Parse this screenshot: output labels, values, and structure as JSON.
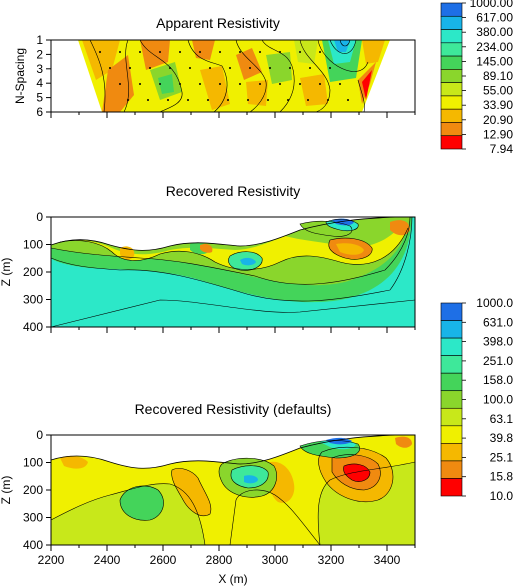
{
  "chart_data": [
    {
      "type": "heatmap",
      "title": "Apparent Resistivity",
      "ylabel": "N-Spacing",
      "xlabel": "",
      "xlim": [
        2200,
        3500
      ],
      "ylim": [
        6,
        1
      ],
      "yticks": [
        "1",
        "2",
        "3",
        "4",
        "5",
        "6"
      ],
      "grid": false
    },
    {
      "type": "heatmap",
      "title": "Recovered Resistivity",
      "ylabel": "Z (m)",
      "xlabel": "",
      "xlim": [
        2200,
        3500
      ],
      "ylim": [
        400,
        0
      ],
      "yticks": [
        "0",
        "100",
        "200",
        "300",
        "400"
      ],
      "grid": false
    },
    {
      "type": "heatmap",
      "title": "Recovered Resistivity (defaults)",
      "ylabel": "Z (m)",
      "xlabel": "X (m)",
      "xlim": [
        2200,
        3500
      ],
      "ylim": [
        400,
        0
      ],
      "xticks": [
        "2200",
        "2400",
        "2600",
        "2800",
        "3000",
        "3200",
        "3400"
      ],
      "yticks": [
        "0",
        "100",
        "200",
        "300",
        "400"
      ],
      "grid": false
    }
  ],
  "colorbars": [
    {
      "labels": [
        "1000.00",
        "617.00",
        "380.00",
        "234.00",
        "145.00",
        "89.10",
        "55.00",
        "33.90",
        "20.90",
        "12.90",
        "7.94"
      ],
      "colors": [
        "#1e6fe6",
        "#18b4e8",
        "#2ce8c8",
        "#3ee89a",
        "#44d45a",
        "#8ad62c",
        "#c8e81a",
        "#f0f000",
        "#f5b800",
        "#f08a10",
        "#ff0000"
      ]
    },
    {
      "labels": [
        "1000.0",
        "631.0",
        "398.0",
        "251.0",
        "158.0",
        "100.0",
        "63.1",
        "39.8",
        "25.1",
        "15.8",
        "10.0"
      ],
      "colors": [
        "#1e6fe6",
        "#18b4e8",
        "#2ce8c8",
        "#3ee89a",
        "#44d45a",
        "#8ad62c",
        "#c8e81a",
        "#f0f000",
        "#f5b800",
        "#f08a10",
        "#ff0000"
      ]
    }
  ]
}
